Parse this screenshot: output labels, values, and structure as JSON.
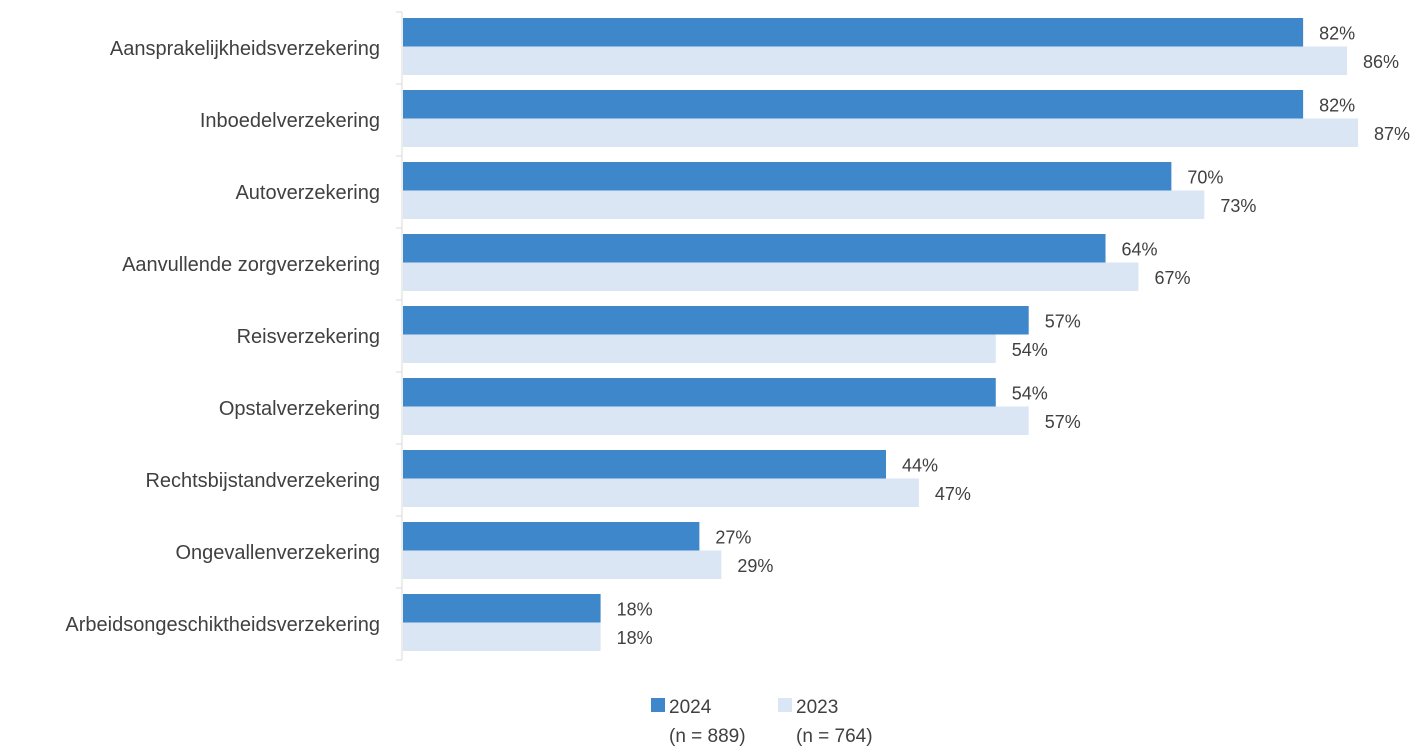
{
  "chart_data": {
    "type": "bar",
    "orientation": "horizontal",
    "categories": [
      "Aansprakelijkheidsverzekering",
      "Inboedelverzekering",
      "Autoverzekering",
      "Aanvullende zorgverzekering",
      "Reisverzekering ",
      "Opstalverzekering",
      "Rechtsbijstandverzekering",
      "Ongevallenverzekering",
      "Arbeidsongeschiktheidsverzekering"
    ],
    "series": [
      {
        "name": "2024",
        "sample": "(n = 889)",
        "color": "#3F87CB",
        "values": [
          82,
          82,
          70,
          64,
          57,
          54,
          44,
          27,
          18
        ],
        "labels": [
          "82%",
          "82%",
          "70%",
          "64%",
          "57%",
          "54%",
          "44%",
          "27%",
          "18%"
        ]
      },
      {
        "name": "2023",
        "sample": "(n = 764)",
        "color": "#DAE6F3",
        "values": [
          86,
          87,
          73,
          67,
          54,
          57,
          47,
          29,
          18
        ],
        "labels": [
          "86%",
          "87%",
          "73%",
          "67%",
          "54%",
          "57%",
          "47%",
          "29%",
          "18%"
        ]
      }
    ],
    "xlim": [
      0,
      87
    ],
    "grid": false,
    "legend_position": "bottom",
    "axis_color": "#D9D9D9"
  }
}
